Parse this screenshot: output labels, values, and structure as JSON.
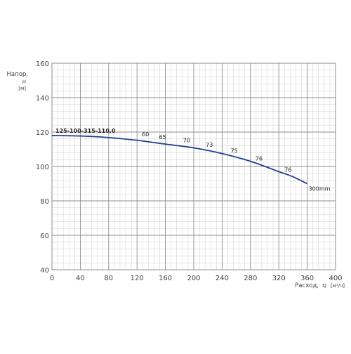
{
  "chart_data": {
    "type": "line",
    "ylabel": "Напор,",
    "ylabel_symbol": "H",
    "ylabel_unit": "[м]",
    "xlabel": "Расход,",
    "xlabel_symbol": "Q",
    "xlabel_unit": "[м³/ч]",
    "xlim": [
      0,
      400
    ],
    "ylim": [
      40,
      160
    ],
    "x_ticks": [
      0,
      40,
      80,
      120,
      160,
      200,
      240,
      280,
      320,
      360,
      400
    ],
    "y_ticks": [
      40,
      60,
      80,
      100,
      120,
      140,
      160
    ],
    "x_minor_step": 8,
    "y_minor_step": 4,
    "grid": true,
    "series": [
      {
        "name": "125-100-315-110,0",
        "end_label": "300mm",
        "color": "#1f3f8f",
        "x": [
          0,
          40,
          80,
          120,
          160,
          200,
          240,
          280,
          320,
          340,
          360
        ],
        "y": [
          118,
          117.7,
          116.8,
          115.2,
          113,
          110.8,
          107.5,
          103,
          97,
          94,
          90
        ]
      }
    ],
    "efficiency_labels": [
      {
        "x": 132,
        "y": 117.5,
        "text": "60"
      },
      {
        "x": 156,
        "y": 116,
        "text": "65"
      },
      {
        "x": 190,
        "y": 114,
        "text": "70"
      },
      {
        "x": 222,
        "y": 111.5,
        "text": "73"
      },
      {
        "x": 257,
        "y": 108,
        "text": "75"
      },
      {
        "x": 292,
        "y": 103.5,
        "text": "76"
      },
      {
        "x": 333,
        "y": 97,
        "text": "76"
      }
    ]
  },
  "colors": {
    "major_grid": "#8c8c8c",
    "minor_grid": "#cfcfcf",
    "axis_text": "#444444",
    "curve": "#1f3f8f"
  }
}
